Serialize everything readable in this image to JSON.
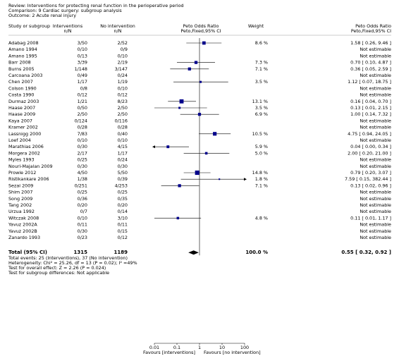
{
  "chart_data": {
    "type": "forest",
    "review": "Review: Interventions for protecting renal function in the perioperative period",
    "comparison": "Comparison: 9 Cardiac surgery: subgroup analysis",
    "outcome": "Outcome: 2 Acute renal injury",
    "columns": {
      "study": "Study or subgroup",
      "interventions": [
        "Interventions",
        "n/N"
      ],
      "control": [
        "No intervention",
        "n/N"
      ],
      "plot": [
        "Peto Odds Ratio",
        "Peto,Fixed,95% CI"
      ],
      "weight": "Weight",
      "estimate": [
        "Peto Odds Ratio",
        "Peto,Fixed,95% CI"
      ]
    },
    "studies": [
      {
        "name": "Adabag 2008",
        "interventions": "3/50",
        "control": "2/52",
        "weight": 8.6,
        "weight_label": "8.6 %",
        "or": 1.58,
        "lower": 0.26,
        "upper": 9.46,
        "ci_label": "1.58 [ 0.26, 9.46 ]"
      },
      {
        "name": "Amano 1994",
        "interventions": "0/10",
        "control": "0/9",
        "ci_label": "Not estimable"
      },
      {
        "name": "Amano 1995",
        "interventions": "0/13",
        "control": "0/10",
        "ci_label": "Not estimable"
      },
      {
        "name": "Barr 2008",
        "interventions": "3/39",
        "control": "2/19",
        "weight": 7.3,
        "weight_label": "7.3 %",
        "or": 0.7,
        "lower": 0.1,
        "upper": 4.87,
        "ci_label": "0.70 [ 0.10, 4.87 ]"
      },
      {
        "name": "Burns 2005",
        "interventions": "1/148",
        "control": "3/147",
        "weight": 7.1,
        "weight_label": "7.1 %",
        "or": 0.36,
        "lower": 0.05,
        "upper": 2.59,
        "ci_label": "0.36 [ 0.05, 2.59 ]"
      },
      {
        "name": "Carcoana 2003",
        "interventions": "0/49",
        "control": "0/24",
        "ci_label": "Not estimable"
      },
      {
        "name": "Chen 2007",
        "interventions": "1/17",
        "control": "1/19",
        "weight": 3.5,
        "weight_label": "3.5 %",
        "or": 1.12,
        "lower": 0.07,
        "upper": 18.75,
        "ci_label": "1.12 [ 0.07, 18.75 ]"
      },
      {
        "name": "Colson 1990",
        "interventions": "0/8",
        "control": "0/10",
        "ci_label": "Not estimable"
      },
      {
        "name": "Costa 1990",
        "interventions": "0/12",
        "control": "0/12",
        "ci_label": "Not estimable"
      },
      {
        "name": "Durmaz 2003",
        "interventions": "1/21",
        "control": "8/23",
        "weight": 13.1,
        "weight_label": "13.1 %",
        "or": 0.16,
        "lower": 0.04,
        "upper": 0.7,
        "ci_label": "0.16 [ 0.04, 0.70 ]"
      },
      {
        "name": "Haase 2007",
        "interventions": "0/50",
        "control": "2/50",
        "weight": 3.5,
        "weight_label": "3.5 %",
        "or": 0.13,
        "lower": 0.01,
        "upper": 2.15,
        "ci_label": "0.13 [ 0.01, 2.15 ]"
      },
      {
        "name": "Haase 2009",
        "interventions": "2/50",
        "control": "2/50",
        "weight": 6.9,
        "weight_label": "6.9 %",
        "or": 1.0,
        "lower": 0.14,
        "upper": 7.32,
        "ci_label": "1.00 [ 0.14, 7.32 ]"
      },
      {
        "name": "Kaya 2007",
        "interventions": "0/124",
        "control": "0/116",
        "ci_label": "Not estimable"
      },
      {
        "name": "Kramer 2002",
        "interventions": "0/28",
        "control": "0/28",
        "ci_label": "Not estimable"
      },
      {
        "name": "Lassnigg 2000",
        "interventions": "7/83",
        "control": "0/40",
        "weight": 10.5,
        "weight_label": "10.5 %",
        "or": 4.75,
        "lower": 0.94,
        "upper": 24.05,
        "ci_label": "4.75 [ 0.94, 24.05 ]"
      },
      {
        "name": "Loef 2004",
        "interventions": "0/10",
        "control": "0/10",
        "ci_label": "Not estimable"
      },
      {
        "name": "Marathias 2006",
        "interventions": "0/30",
        "control": "4/15",
        "weight": 5.9,
        "weight_label": "5.9 %",
        "or": 0.04,
        "lower": 0.0,
        "upper": 0.34,
        "ci_label": "0.04 [ 0.00, 0.34 ]"
      },
      {
        "name": "Morgera 2002",
        "interventions": "2/17",
        "control": "1/17",
        "weight": 5.0,
        "weight_label": "5.0 %",
        "or": 2.0,
        "lower": 0.2,
        "upper": 21.0,
        "ci_label": "2.00 [ 0.20, 21.00 ]"
      },
      {
        "name": "Myles 1993",
        "interventions": "0/25",
        "control": "0/24",
        "ci_label": "Not estimable"
      },
      {
        "name": "Nouri-Majalan 2009",
        "interventions": "0/30",
        "control": "0/30",
        "ci_label": "Not estimable"
      },
      {
        "name": "Prowle 2012",
        "interventions": "4/50",
        "control": "5/50",
        "weight": 14.8,
        "weight_label": "14.8 %",
        "or": 0.79,
        "lower": 0.2,
        "upper": 3.07,
        "ci_label": "0.79 [ 0.20, 3.07 ]"
      },
      {
        "name": "Ristikankare 2006",
        "interventions": "1/38",
        "control": "0/39",
        "weight": 1.8,
        "weight_label": "1.8 %",
        "or": 7.59,
        "lower": 0.15,
        "upper": 382.44,
        "ci_label": "7.59 [ 0.15, 382.44 ]"
      },
      {
        "name": "Sezai 2009",
        "interventions": "0/251",
        "control": "4/253",
        "weight": 7.1,
        "weight_label": "7.1 %",
        "or": 0.13,
        "lower": 0.02,
        "upper": 0.96,
        "ci_label": "0.13 [ 0.02, 0.96 ]"
      },
      {
        "name": "Shim 2007",
        "interventions": "0/25",
        "control": "0/25",
        "ci_label": "Not estimable"
      },
      {
        "name": "Song 2009",
        "interventions": "0/36",
        "control": "0/35",
        "ci_label": "Not estimable"
      },
      {
        "name": "Tang 2002",
        "interventions": "0/20",
        "control": "0/20",
        "ci_label": "Not estimable"
      },
      {
        "name": "Urzua 1992",
        "interventions": "0/7",
        "control": "0/14",
        "ci_label": "Not estimable"
      },
      {
        "name": "Witczak 2008",
        "interventions": "0/10",
        "control": "3/10",
        "weight": 4.8,
        "weight_label": "4.8 %",
        "or": 0.11,
        "lower": 0.01,
        "upper": 1.17,
        "ci_label": "0.11 [ 0.01, 1.17 ]"
      },
      {
        "name": "Yavuz 2002A",
        "interventions": "0/11",
        "control": "0/11",
        "ci_label": "Not estimable"
      },
      {
        "name": "Yavuz 2002B",
        "interventions": "0/30",
        "control": "0/15",
        "ci_label": "Not estimable"
      },
      {
        "name": "Zanardo 1993",
        "interventions": "0/23",
        "control": "0/12",
        "ci_label": "Not estimable"
      }
    ],
    "total": {
      "name": "Total (95% CI)",
      "interventions": 1315,
      "control": 1189,
      "weight": 100.0,
      "weight_label": "100.0 %",
      "or": 0.55,
      "lower": 0.32,
      "upper": 0.92,
      "ci_label": "0.55 [ 0.32, 0.92 ]"
    },
    "footnotes": [
      "Total events: 25 (Interventions), 37 (No intervention)",
      "Heterogeneity: Chi² = 25.26, df = 13 (P = 0.02); I² =49%",
      "Test for overall effect: Z = 2.26 (P = 0.024)",
      "Test for subgroup differences: Not applicable"
    ],
    "x_scale": "log",
    "xlim": [
      0.01,
      100
    ],
    "xticks": [
      0.01,
      0.1,
      1,
      10,
      100
    ],
    "favours_left": "Favours [interventions]",
    "favours_right": "Favours [no intervention]",
    "color": "#00008b"
  }
}
